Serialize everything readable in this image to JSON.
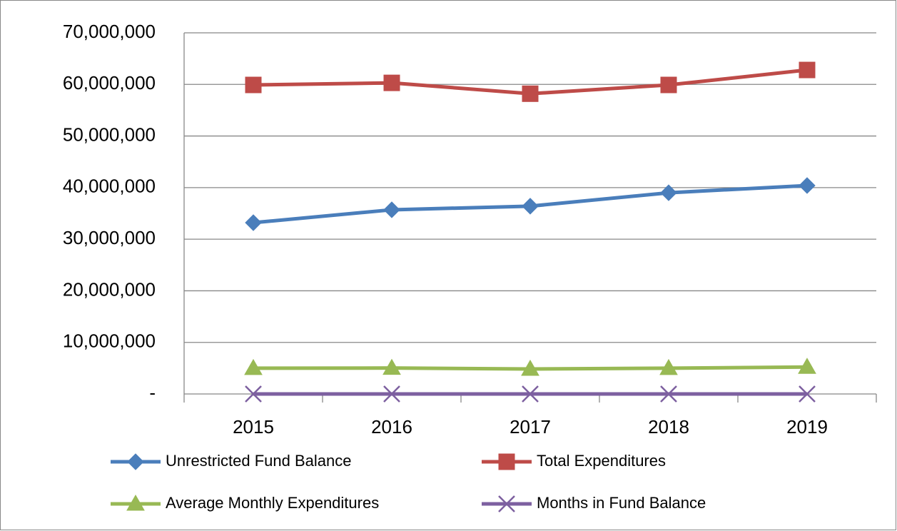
{
  "chart_data": {
    "type": "line",
    "categories": [
      "2015",
      "2016",
      "2017",
      "2018",
      "2019"
    ],
    "series": [
      {
        "name": "Unrestricted Fund Balance",
        "color": "#4a7ebb",
        "marker": "diamond",
        "values": [
          33200000,
          35700000,
          36400000,
          39000000,
          40400000
        ]
      },
      {
        "name": "Total Expenditures",
        "color": "#be4b48",
        "marker": "square",
        "values": [
          59900000,
          60300000,
          58200000,
          59900000,
          62800000
        ]
      },
      {
        "name": "Average Monthly Expenditures",
        "color": "#98b954",
        "marker": "triangle",
        "values": [
          4990000,
          5030000,
          4850000,
          4990000,
          5230000
        ]
      },
      {
        "name": "Months in Fund Balance",
        "color": "#7d60a0",
        "marker": "x",
        "values": [
          6.6,
          7.1,
          7.5,
          7.8,
          7.7
        ]
      }
    ],
    "ylim": [
      0,
      70000000
    ],
    "yticks": [
      {
        "value": 0,
        "label": "-"
      },
      {
        "value": 10000000,
        "label": "10,000,000"
      },
      {
        "value": 20000000,
        "label": "20,000,000"
      },
      {
        "value": 30000000,
        "label": "30,000,000"
      },
      {
        "value": 40000000,
        "label": "40,000,000"
      },
      {
        "value": 50000000,
        "label": "50,000,000"
      },
      {
        "value": 60000000,
        "label": "60,000,000"
      },
      {
        "value": 70000000,
        "label": "70,000,000"
      }
    ],
    "grid": true,
    "legend": "bottom"
  }
}
